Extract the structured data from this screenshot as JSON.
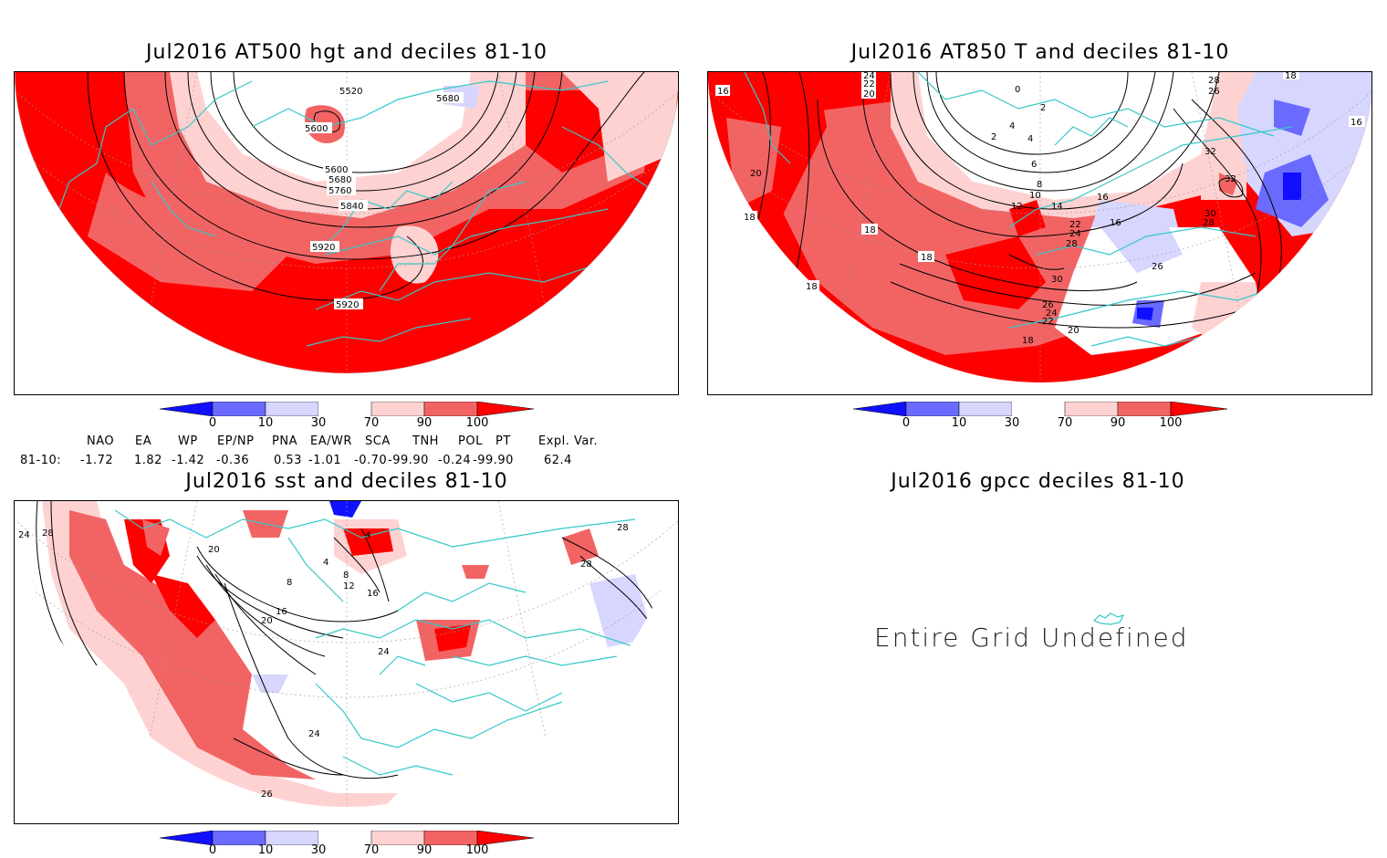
{
  "panels": {
    "p1_title": "Jul2016 AT500 hgt and deciles 81-10",
    "p2_title": "Jul2016 AT850 T and deciles 81-10",
    "p3_title": "Jul2016 sst and deciles 81-10",
    "p4_title": "Jul2016 gpcc deciles 81-10",
    "p4_message": "Entire Grid Undefined"
  },
  "colorbar": {
    "labels": [
      "0",
      "10",
      "30",
      "70",
      "90",
      "100"
    ],
    "colors": [
      "#1010ff",
      "#6a6aff",
      "#d6d6ff",
      "#ffffff",
      "#ffd2d2",
      "#f26464",
      "#ff0000"
    ]
  },
  "contours": {
    "p1": [
      "5520",
      "5680",
      "5600",
      "5600",
      "5680",
      "5760",
      "5840",
      "5920",
      "5920"
    ],
    "p2": [
      "16",
      "24",
      "22",
      "20",
      "0",
      "2",
      "4",
      "2",
      "4",
      "6",
      "8",
      "10",
      "12",
      "14",
      "16",
      "18",
      "18",
      "20",
      "18",
      "18",
      "22",
      "24",
      "28",
      "30",
      "26",
      "24",
      "22",
      "20",
      "18",
      "16",
      "26",
      "28",
      "26",
      "32",
      "32",
      "30",
      "28",
      "18",
      "16"
    ],
    "p3": [
      "24",
      "28",
      "20",
      "8",
      "4",
      "4",
      "8",
      "12",
      "16",
      "16",
      "20",
      "24",
      "24",
      "26",
      "28",
      "28"
    ]
  },
  "indices": {
    "header": [
      "NAO",
      "EA",
      "WP",
      "EP/NP",
      "PNA",
      "EA/WR",
      "SCA",
      "TNH",
      "POL",
      "PT",
      "Expl. Var."
    ],
    "row_label": "81-10:",
    "values": [
      "-1.72",
      "1.82",
      "-1.42",
      "-0.36",
      "0.53",
      "-1.01",
      "-0.70",
      "-99.90",
      "-0.24",
      "-99.90",
      "62.4"
    ]
  }
}
